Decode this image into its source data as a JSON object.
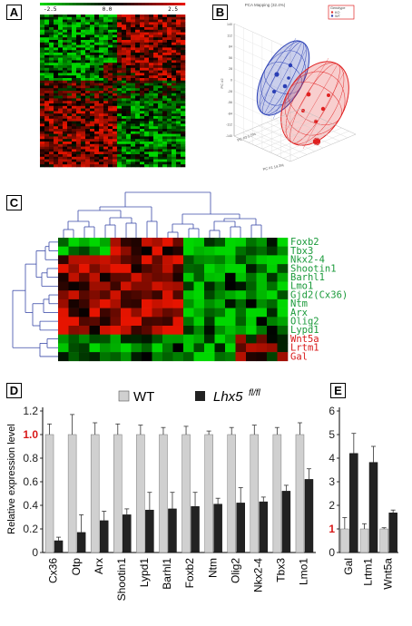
{
  "panels": {
    "a": "A",
    "b": "B",
    "c": "C",
    "d": "D",
    "e": "E"
  },
  "heatmap_a": {
    "colorbar_min": "-2.5",
    "colorbar_mid": "0.0",
    "colorbar_max": "2.5",
    "colors": {
      "low": "#00c400",
      "mid": "#000000",
      "high": "#e00000"
    }
  },
  "pca": {
    "title": "PCA Mapping (32.4%)",
    "legend_title": "Genotype",
    "legend_items": [
      {
        "label": "KO",
        "color": "#e03030"
      },
      {
        "label": "WT",
        "color": "#3040b0"
      }
    ],
    "x_axis_label": "PC #1 14.3%",
    "y_axis_label": "PC #2",
    "z_axis_label": "PC #3 5.5%",
    "y_ticks": [
      "140",
      "112",
      "84",
      "56",
      "28",
      "0",
      "-28",
      "-56",
      "-84",
      "-112",
      "-140"
    ]
  },
  "cluster_c": {
    "genes": [
      {
        "name": "Foxb2",
        "color": "#1a9a3a"
      },
      {
        "name": "Tbx3",
        "color": "#1a9a3a"
      },
      {
        "name": "Nkx2-4",
        "color": "#1a9a3a"
      },
      {
        "name": "Shootin1",
        "color": "#1a9a3a"
      },
      {
        "name": "Barhl1",
        "color": "#1a9a3a"
      },
      {
        "name": "Lmo1",
        "color": "#1a9a3a"
      },
      {
        "name": "Gjd2(Cx36)",
        "color": "#1a9a3a"
      },
      {
        "name": "Ntm",
        "color": "#1a9a3a"
      },
      {
        "name": "Arx",
        "color": "#1a9a3a"
      },
      {
        "name": "Olig2",
        "color": "#1a9a3a"
      },
      {
        "name": "Lypd1",
        "color": "#1a9a3a"
      },
      {
        "name": "Wnt5a",
        "color": "#d81818"
      },
      {
        "name": "Lrtm1",
        "color": "#d81818"
      },
      {
        "name": "Gal",
        "color": "#d81818"
      }
    ]
  },
  "chart_data": [
    {
      "type": "bar",
      "panel": "D",
      "categories": [
        "Cx36",
        "Otp",
        "Arx",
        "Shootin1",
        "Lypd1",
        "Barhl1",
        "Foxb2",
        "Ntm",
        "Olig2",
        "Nkx2-4",
        "Tbx3",
        "Lmo1"
      ],
      "series": [
        {
          "name": "WT",
          "color": "#d0d0d0",
          "values": [
            1.0,
            1.0,
            1.0,
            1.0,
            1.0,
            1.0,
            1.0,
            1.0,
            1.0,
            1.0,
            1.0,
            1.0
          ],
          "errors": [
            0.09,
            0.17,
            0.1,
            0.09,
            0.08,
            0.06,
            0.07,
            0.03,
            0.06,
            0.08,
            0.06,
            0.1
          ]
        },
        {
          "name_prefix": "Lhx5",
          "name_superscript": "fl/fl",
          "color": "#222222",
          "values": [
            0.1,
            0.17,
            0.27,
            0.32,
            0.36,
            0.37,
            0.39,
            0.41,
            0.42,
            0.43,
            0.52,
            0.62
          ],
          "errors": [
            0.03,
            0.15,
            0.08,
            0.05,
            0.15,
            0.14,
            0.12,
            0.05,
            0.13,
            0.04,
            0.05,
            0.09
          ]
        }
      ],
      "ylabel": "Relative expression level",
      "ylim": [
        0,
        1.2
      ],
      "yticks": [
        0,
        0.2,
        0.4,
        0.6,
        0.8,
        1.0,
        1.2
      ],
      "ytick_labels": [
        "0",
        "0.2",
        "0.4",
        "0.6",
        "0.8",
        "1.0",
        "1.2"
      ],
      "highlight_tick": "1.0",
      "highlight_color": "#d81818"
    },
    {
      "type": "bar",
      "panel": "E",
      "categories": [
        "Gal",
        "Lrtm1",
        "Wnt5a"
      ],
      "series": [
        {
          "name": "WT",
          "color": "#d0d0d0",
          "values": [
            1.0,
            1.0,
            1.0
          ],
          "errors": [
            0.48,
            0.22,
            0.05
          ]
        },
        {
          "name_prefix": "Lhx5",
          "name_superscript": "fl/fl",
          "color": "#222222",
          "values": [
            4.2,
            3.82,
            1.68
          ],
          "errors": [
            0.85,
            0.68,
            0.12
          ]
        }
      ],
      "ylim": [
        0,
        6
      ],
      "yticks": [
        0,
        1,
        2,
        3,
        4,
        5,
        6
      ],
      "ytick_labels": [
        "0",
        "1",
        "2",
        "3",
        "4",
        "5",
        "6"
      ],
      "highlight_tick": "1",
      "highlight_color": "#d81818"
    }
  ]
}
